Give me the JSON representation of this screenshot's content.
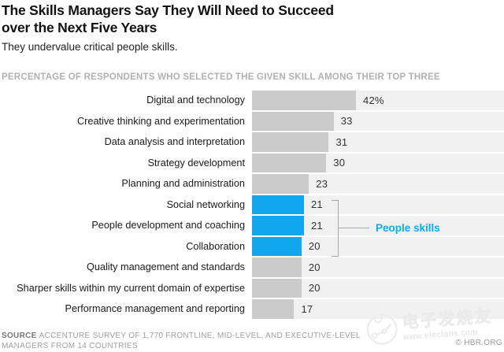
{
  "header": {
    "title_line1": "The Skills Managers Say They Will Need to Succeed",
    "title_line2": "over the Next Five Years",
    "subtitle": "They undervalue critical people skills.",
    "kicker": "PERCENTAGE OF RESPONDENTS WHO SELECTED THE GIVEN SKILL AMONG THEIR TOP THREE"
  },
  "chart_data": {
    "type": "bar",
    "orientation": "horizontal",
    "title": "The Skills Managers Say They Will Need to Succeed over the Next Five Years",
    "subtitle": "They undervalue critical people skills.",
    "axis_note": "Percentage of respondents who selected the given skill among their top three",
    "categories": [
      "Digital and technology",
      "Creative thinking and experimentation",
      "Data analysis and interpretation",
      "Strategy development",
      "Planning and administration",
      "Social networking",
      "People development and coaching",
      "Collaboration",
      "Quality management and standards",
      "Sharper skills within my current domain of expertise",
      "Performance management and reporting"
    ],
    "values": [
      42,
      33,
      31,
      30,
      23,
      21,
      21,
      20,
      20,
      20,
      17
    ],
    "value_labels": [
      "42%",
      "33",
      "31",
      "30",
      "23",
      "21",
      "21",
      "20",
      "20",
      "20",
      "17"
    ],
    "highlight_indices": [
      5,
      6,
      7
    ],
    "annotation": "People skills",
    "annotation_applies_to": [
      "Social networking",
      "People development and coaching",
      "Collaboration"
    ],
    "xlim": [
      0,
      101.8
    ],
    "grid": false,
    "legend": false,
    "colors": {
      "bar": "#cbcbcb",
      "highlight": "#10a7ee",
      "track": "#f1f1f1",
      "annotation_text": "#10a7ee",
      "bracket": "#a9a9a9"
    }
  },
  "footer": {
    "source_label": "SOURCE",
    "source_text": "ACCENTURE SURVEY OF 1,770 FRONTLINE, MID-LEVEL, AND EXECUTIVE-LEVEL MANAGERS FROM 14 COUNTRIES",
    "credit": "© HBR.ORG"
  },
  "watermark": {
    "cn_text": "电子发烧友",
    "url": "www.elecfans.com"
  }
}
